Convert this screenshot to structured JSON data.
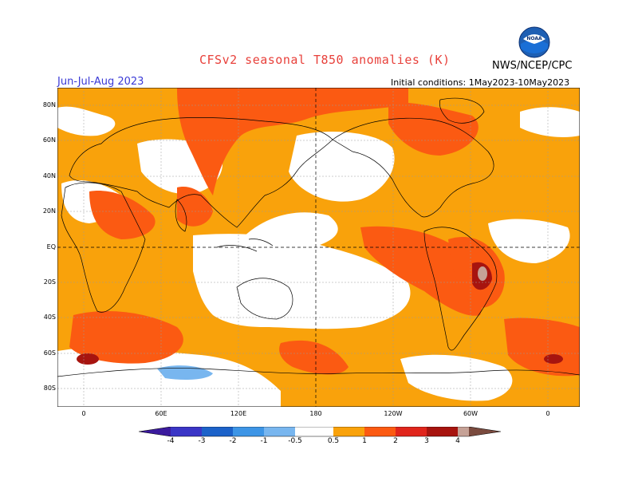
{
  "header": {
    "title": "CFSv2 seasonal T850 anomalies (K)",
    "season": "Jun-Jul-Aug 2023",
    "initial_conditions": "Initial conditions: 1May2023-10May2023",
    "agency": "NWS/NCEP/CPC",
    "logo_text": "NOAA"
  },
  "axes": {
    "lat_labels": [
      "80N",
      "60N",
      "40N",
      "20N",
      "EQ",
      "20S",
      "40S",
      "60S",
      "80S"
    ],
    "lon_labels": [
      "0",
      "60E",
      "120E",
      "180",
      "120W",
      "60W",
      "0"
    ]
  },
  "colorbar": {
    "labels": [
      "-4",
      "-3",
      "-2",
      "-1",
      "-0.5",
      "0.5",
      "1",
      "2",
      "3",
      "4"
    ],
    "colors": {
      "lt_m4": "#3b1a9e",
      "m4_m3": "#3a35c6",
      "m3_m2": "#1c62c9",
      "m2_m1": "#3d95e6",
      "m1_m05": "#78b6ef",
      "neutral": "#ffffff",
      "p05_1": "#f9a20b",
      "p1_2": "#fb5a12",
      "p2_3": "#e0251c",
      "p3_4": "#a7140f",
      "p4_5": "#c5a196",
      "gt5": "#7a4a3e"
    }
  }
}
